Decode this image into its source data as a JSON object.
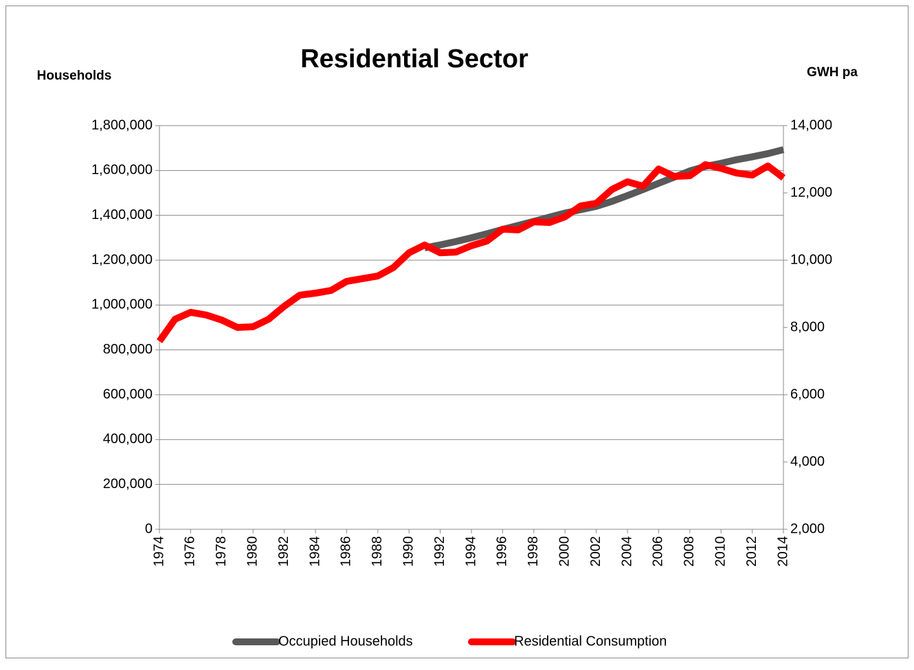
{
  "chart_data": {
    "type": "line",
    "title": "Residential Sector",
    "y_label": "Households",
    "y2_label": "GWH pa",
    "x": [
      1974,
      1975,
      1976,
      1977,
      1978,
      1979,
      1980,
      1981,
      1982,
      1983,
      1984,
      1985,
      1986,
      1987,
      1988,
      1989,
      1990,
      1991,
      1992,
      1993,
      1994,
      1995,
      1996,
      1997,
      1998,
      1999,
      2000,
      2001,
      2002,
      2003,
      2004,
      2005,
      2006,
      2007,
      2008,
      2009,
      2010,
      2011,
      2012,
      2013,
      2014
    ],
    "xlim": [
      1974,
      2014
    ],
    "xticks": [
      1974,
      1976,
      1978,
      1980,
      1982,
      1984,
      1986,
      1988,
      1990,
      1992,
      1994,
      1996,
      1998,
      2000,
      2002,
      2004,
      2006,
      2008,
      2010,
      2012,
      2014
    ],
    "ylim": [
      0,
      1800000
    ],
    "yticks": [
      0,
      {
        "value": 200000,
        "label": "200,000"
      },
      {
        "value": 400000,
        "label": "400,000"
      },
      {
        "value": 600000,
        "label": "600,000"
      },
      {
        "value": 800000,
        "label": "800,000"
      },
      {
        "value": 1000000,
        "label": "1,000,000"
      },
      {
        "value": 1200000,
        "label": "1,200,000"
      },
      {
        "value": 1400000,
        "label": "1,400,000"
      },
      {
        "value": 1600000,
        "label": "1,600,000"
      },
      {
        "value": 1800000,
        "label": "1,800,000"
      }
    ],
    "y2lim": [
      2000,
      14000
    ],
    "y2ticks": [
      {
        "value": 2000,
        "label": "2,000"
      },
      {
        "value": 4000,
        "label": "4,000"
      },
      {
        "value": 6000,
        "label": "6,000"
      },
      {
        "value": 8000,
        "label": "8,000"
      },
      {
        "value": 10000,
        "label": "10,000"
      },
      {
        "value": 12000,
        "label": "12,000"
      },
      {
        "value": 14000,
        "label": "14,000"
      }
    ],
    "grid": true,
    "legend": "bottom",
    "series": [
      {
        "name": "Occupied Households",
        "color": "#595959",
        "values": [
          null,
          null,
          null,
          null,
          null,
          null,
          null,
          null,
          null,
          null,
          null,
          null,
          null,
          null,
          null,
          null,
          null,
          1255000,
          1268000,
          1283000,
          1300000,
          1318000,
          1337000,
          1355000,
          1373000,
          1392000,
          1410000,
          1425000,
          1440000,
          1462000,
          1488000,
          1515000,
          1543000,
          1570000,
          1598000,
          1618000,
          1632000,
          1648000,
          1661000,
          1675000,
          1693000
        ]
      },
      {
        "name": "Residential Consumption",
        "color": "#ff0000",
        "axis": "y2",
        "values": [
          7590,
          8245,
          8450,
          8370,
          8220,
          8000,
          8020,
          8245,
          8630,
          8960,
          9020,
          9100,
          9370,
          9450,
          9530,
          9780,
          10220,
          10450,
          10220,
          10240,
          10430,
          10570,
          10920,
          10900,
          11140,
          11120,
          11290,
          11610,
          11690,
          12100,
          12330,
          12200,
          12710,
          12490,
          12510,
          12840,
          12730,
          12590,
          12530,
          12800,
          12450
        ]
      }
    ]
  }
}
